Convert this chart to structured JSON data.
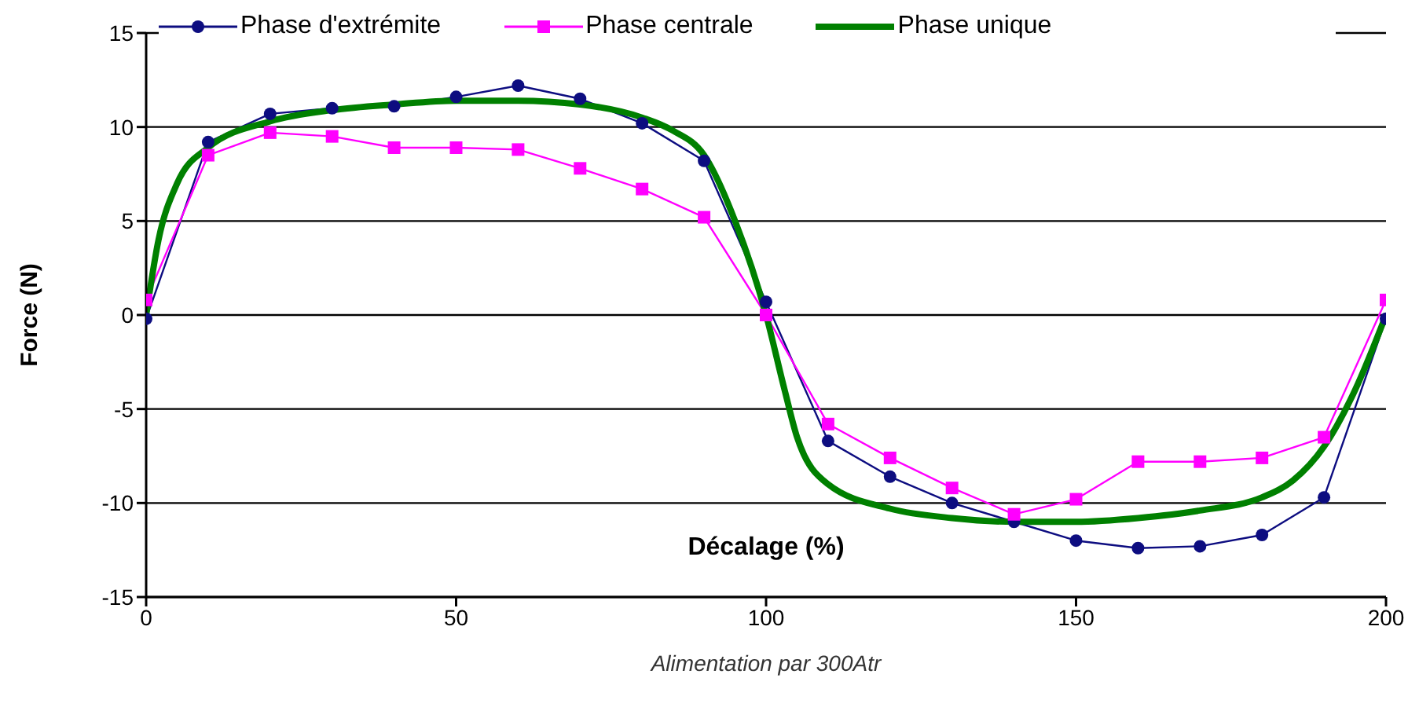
{
  "chart_data": {
    "type": "line",
    "xlabel": "Décalage (%)",
    "ylabel": "Force (N)",
    "annotations": [
      "Alimentation par 300Atr"
    ],
    "xlim": [
      0,
      200
    ],
    "xticks": [
      0,
      50,
      100,
      150,
      200
    ],
    "ylim": [
      -15,
      15
    ],
    "yticks": [
      -15,
      -10,
      -5,
      0,
      5,
      10,
      15
    ],
    "grid": "y",
    "legend": "top",
    "series": [
      {
        "name": "Phase d'extrémite",
        "color": "#0d0d80",
        "marker": "circle",
        "x": [
          0,
          10,
          20,
          30,
          40,
          50,
          60,
          70,
          80,
          90,
          100,
          110,
          120,
          130,
          140,
          150,
          160,
          170,
          180,
          190,
          200
        ],
        "values": [
          -0.2,
          9.2,
          10.7,
          11.0,
          11.1,
          11.6,
          12.2,
          11.5,
          10.2,
          8.2,
          0.7,
          -6.7,
          -8.6,
          -10.0,
          -11.0,
          -12.0,
          -12.4,
          -12.3,
          -11.7,
          -9.7,
          -0.2
        ]
      },
      {
        "name": "Phase centrale",
        "color": "#ff00ff",
        "marker": "square",
        "x": [
          0,
          10,
          20,
          30,
          40,
          50,
          60,
          70,
          80,
          90,
          100,
          110,
          120,
          130,
          140,
          150,
          160,
          170,
          180,
          190,
          200
        ],
        "values": [
          0.8,
          8.5,
          9.7,
          9.5,
          8.9,
          8.9,
          8.8,
          7.8,
          6.7,
          5.2,
          0,
          -5.8,
          -7.6,
          -9.2,
          -10.6,
          -9.8,
          -7.8,
          -7.8,
          -7.6,
          -6.5,
          0.8
        ]
      },
      {
        "name": "Phase unique",
        "color": "#008000",
        "marker": "none",
        "x": [
          0,
          2,
          5,
          10,
          20,
          30,
          40,
          50,
          60,
          70,
          80,
          85,
          90,
          95,
          100,
          103,
          105,
          110,
          120,
          130,
          140,
          150,
          160,
          170,
          180,
          185,
          190,
          195,
          200
        ],
        "values": [
          0,
          4,
          7,
          8.9,
          10.3,
          10.9,
          11.2,
          11.4,
          11.4,
          11.2,
          10.5,
          9.8,
          8.5,
          5,
          0,
          -4,
          -6.5,
          -9,
          -10.3,
          -10.8,
          -11,
          -11,
          -10.8,
          -10.4,
          -9.7,
          -8.8,
          -7,
          -4,
          0
        ]
      }
    ]
  }
}
